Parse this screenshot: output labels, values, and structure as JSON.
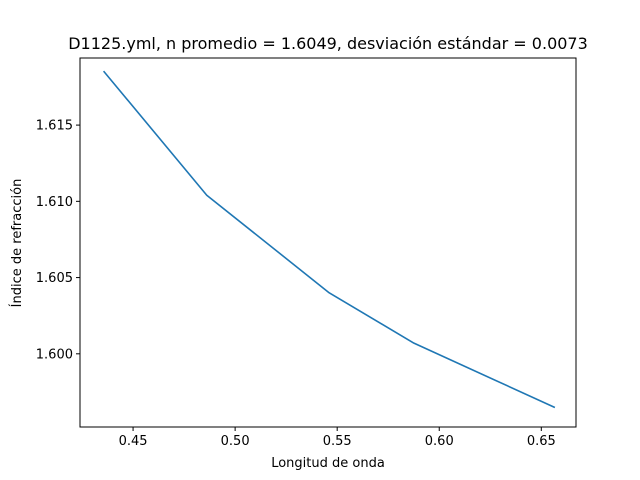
{
  "chart_data": {
    "type": "line",
    "title": "D1125.yml, n promedio = 1.6049, desviación estándar = 0.0073",
    "xlabel": "Longitud de onda",
    "ylabel": "Índice de refracción",
    "xlim": [
      0.424,
      0.667
    ],
    "ylim": [
      1.5952,
      1.6194
    ],
    "xticks": [
      {
        "value": 0.45,
        "label": "0.45"
      },
      {
        "value": 0.5,
        "label": "0.50"
      },
      {
        "value": 0.55,
        "label": "0.55"
      },
      {
        "value": 0.6,
        "label": "0.60"
      },
      {
        "value": 0.65,
        "label": "0.65"
      }
    ],
    "yticks": [
      {
        "value": 1.6,
        "label": "1.600"
      },
      {
        "value": 1.605,
        "label": "1.605"
      },
      {
        "value": 1.61,
        "label": "1.610"
      },
      {
        "value": 1.615,
        "label": "1.615"
      }
    ],
    "grid": false,
    "series": [
      {
        "color": "#1f77b4",
        "x": [
          0.4358,
          0.4861,
          0.5461,
          0.5876,
          0.6563
        ],
        "y": [
          1.6185,
          1.6104,
          1.604,
          1.6007,
          1.5965
        ]
      }
    ]
  }
}
